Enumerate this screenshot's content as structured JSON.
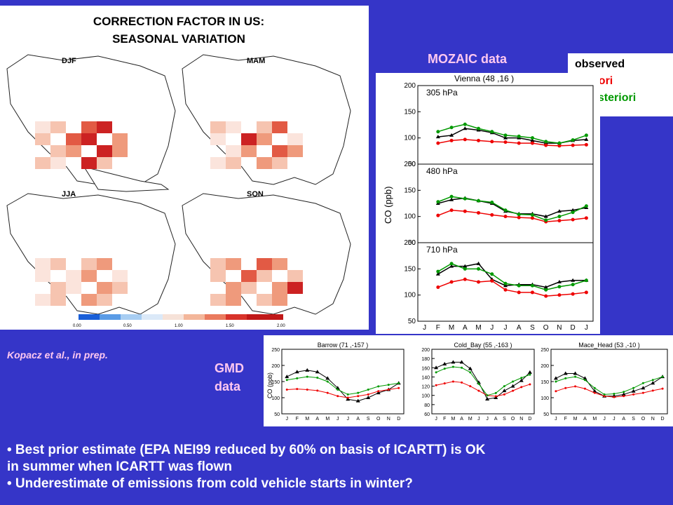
{
  "map": {
    "title_line1": "CORRECTION FACTOR IN US:",
    "title_line2": "SEASONAL VARIATION",
    "seasons": [
      "DJF",
      "MAM",
      "JJA",
      "SON"
    ],
    "colorbar_ticks": [
      "0.00",
      "0.50",
      "1.00",
      "1.50",
      "2.00"
    ]
  },
  "mozaic": {
    "label": "MOZAIC data",
    "station": "Vienna (48 ,16 )",
    "ylabel": "CO (ppb)"
  },
  "legend": {
    "observed": "observed",
    "prior": "a priori",
    "posterior": "a posteriori",
    "colors": {
      "observed": "#000000",
      "prior": "#ee0000",
      "posterior": "#009900"
    }
  },
  "gmd": {
    "label_line1": "GMD",
    "label_line2": "data",
    "ylabel": "CO (ppb)"
  },
  "citation": "Kopacz et al., in prep.",
  "bullets": {
    "b1_line1": "• Best prior estimate (EPA NEI99 reduced by 60% on basis of ICARTT) is OK",
    "b1_line2": "in summer when ICARTT was flown",
    "b2": "• Underestimate of emissions from cold vehicle starts in winter?"
  },
  "chart_data": [
    {
      "type": "line",
      "title": "Vienna (48 ,16 )",
      "panel": "305 hPa",
      "ylabel": "CO (ppb)",
      "ylim": [
        50,
        200
      ],
      "yticks": [
        50,
        100,
        150,
        200
      ],
      "categories": [
        "J",
        "F",
        "M",
        "A",
        "M",
        "J",
        "J",
        "A",
        "S",
        "O",
        "N",
        "D",
        "J"
      ],
      "series": [
        {
          "role": "observed",
          "values": [
            null,
            102,
            105,
            118,
            115,
            110,
            100,
            100,
            95,
            90,
            90,
            95,
            97
          ]
        },
        {
          "role": "a priori",
          "values": [
            null,
            90,
            95,
            97,
            95,
            93,
            92,
            90,
            90,
            86,
            85,
            86,
            87
          ]
        },
        {
          "role": "a posteriori",
          "values": [
            null,
            112,
            120,
            126,
            118,
            112,
            105,
            103,
            100,
            93,
            90,
            96,
            105
          ]
        }
      ]
    },
    {
      "type": "line",
      "panel": "480 hPa",
      "ylabel": "CO (ppb)",
      "ylim": [
        50,
        200
      ],
      "yticks": [
        50,
        100,
        150,
        200
      ],
      "categories": [
        "J",
        "F",
        "M",
        "A",
        "M",
        "J",
        "J",
        "A",
        "S",
        "O",
        "N",
        "D",
        "J"
      ],
      "series": [
        {
          "role": "observed",
          "values": [
            null,
            125,
            132,
            135,
            130,
            125,
            110,
            105,
            105,
            100,
            110,
            112,
            117
          ]
        },
        {
          "role": "a priori",
          "values": [
            null,
            102,
            112,
            110,
            107,
            103,
            100,
            98,
            97,
            90,
            92,
            94,
            97
          ]
        },
        {
          "role": "a posteriori",
          "values": [
            null,
            128,
            138,
            134,
            130,
            127,
            112,
            104,
            103,
            93,
            100,
            108,
            120
          ]
        }
      ]
    },
    {
      "type": "line",
      "panel": "710 hPa",
      "ylabel": "CO (ppb)",
      "ylim": [
        50,
        200
      ],
      "yticks": [
        50,
        100,
        150,
        200
      ],
      "categories": [
        "J",
        "F",
        "M",
        "A",
        "M",
        "J",
        "J",
        "A",
        "S",
        "O",
        "N",
        "D",
        "J"
      ],
      "series": [
        {
          "role": "observed",
          "values": [
            null,
            140,
            155,
            155,
            160,
            130,
            118,
            120,
            120,
            115,
            125,
            128,
            128
          ]
        },
        {
          "role": "a priori",
          "values": [
            null,
            115,
            125,
            130,
            125,
            127,
            110,
            105,
            105,
            98,
            100,
            102,
            105
          ]
        },
        {
          "role": "a posteriori",
          "values": [
            null,
            145,
            160,
            150,
            150,
            140,
            122,
            118,
            118,
            110,
            116,
            120,
            128
          ]
        }
      ]
    },
    {
      "type": "line",
      "title": "Barrow (71 ,-157 )",
      "ylabel": "CO (ppb)",
      "ylim": [
        50,
        250
      ],
      "yticks": [
        50,
        100,
        150,
        200,
        250
      ],
      "categories": [
        "J",
        "F",
        "M",
        "A",
        "M",
        "J",
        "J",
        "A",
        "S",
        "O",
        "N",
        "D"
      ],
      "series": [
        {
          "role": "observed",
          "values": [
            165,
            180,
            185,
            180,
            160,
            130,
            95,
            90,
            100,
            115,
            125,
            145
          ]
        },
        {
          "role": "a priori",
          "values": [
            125,
            127,
            125,
            122,
            115,
            105,
            100,
            105,
            110,
            120,
            125,
            130
          ]
        },
        {
          "role": "a posteriori",
          "values": [
            155,
            160,
            165,
            162,
            150,
            125,
            110,
            115,
            125,
            135,
            140,
            145
          ]
        }
      ]
    },
    {
      "type": "line",
      "title": "Cold_Bay (55 ,-163 )",
      "ylim": [
        60,
        200
      ],
      "yticks": [
        60,
        80,
        100,
        120,
        140,
        160,
        180,
        200
      ],
      "categories": [
        "J",
        "F",
        "M",
        "A",
        "M",
        "J",
        "J",
        "A",
        "S",
        "O",
        "N",
        "D"
      ],
      "series": [
        {
          "role": "observed",
          "values": [
            160,
            168,
            172,
            172,
            158,
            128,
            92,
            95,
            110,
            120,
            132,
            150
          ]
        },
        {
          "role": "a priori",
          "values": [
            122,
            126,
            130,
            128,
            120,
            110,
            100,
            98,
            102,
            110,
            118,
            124
          ]
        },
        {
          "role": "a posteriori",
          "values": [
            150,
            158,
            162,
            160,
            150,
            125,
            100,
            105,
            120,
            130,
            138,
            145
          ]
        }
      ]
    },
    {
      "type": "line",
      "title": "Mace_Head (53 ,-10 )",
      "ylim": [
        50,
        250
      ],
      "yticks": [
        50,
        100,
        150,
        200,
        250
      ],
      "categories": [
        "J",
        "F",
        "M",
        "A",
        "M",
        "J",
        "J",
        "A",
        "S",
        "O",
        "N",
        "D"
      ],
      "series": [
        {
          "role": "observed",
          "values": [
            160,
            175,
            175,
            160,
            120,
            105,
            105,
            110,
            120,
            130,
            145,
            165
          ]
        },
        {
          "role": "a priori",
          "values": [
            120,
            130,
            135,
            128,
            115,
            105,
            102,
            105,
            110,
            115,
            122,
            128
          ]
        },
        {
          "role": "a posteriori",
          "values": [
            150,
            160,
            165,
            155,
            130,
            110,
            112,
            118,
            130,
            145,
            155,
            165
          ]
        }
      ]
    }
  ]
}
